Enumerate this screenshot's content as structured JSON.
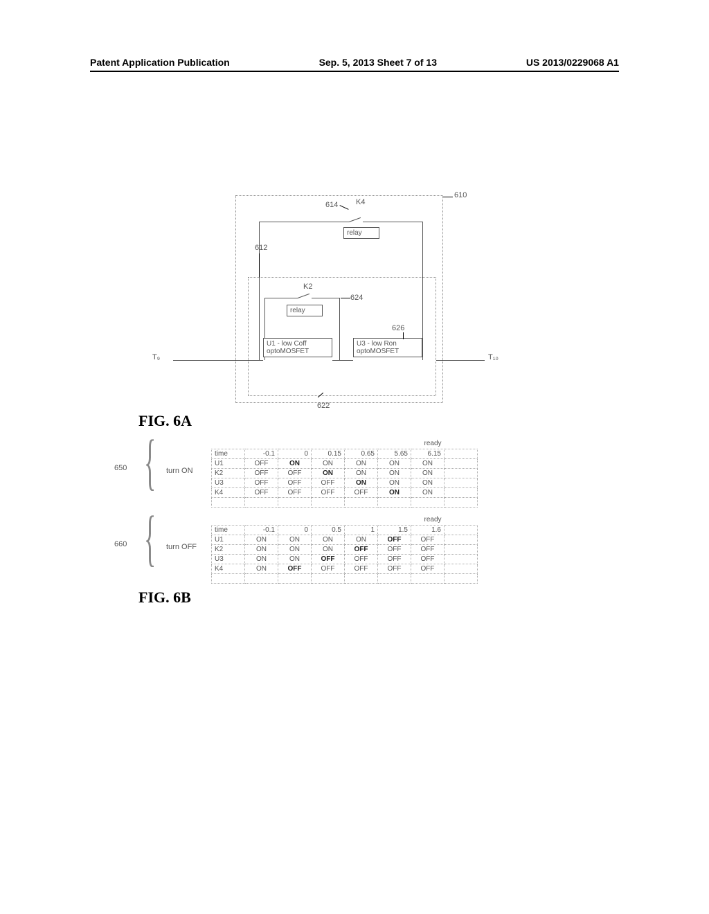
{
  "header": {
    "left": "Patent Application Publication",
    "center": "Sep. 5, 2013   Sheet 7 of 13",
    "right": "US 2013/0229068 A1"
  },
  "circuit": {
    "outer_ref": "610",
    "inner_ref": "612",
    "k4_ref": "614",
    "k2_inner_ref": "624",
    "u1_ref": "622",
    "u3_ref": "626",
    "t9": "T₉",
    "t10": "T₁₀",
    "k4_label": "K4",
    "k2_label": "K2",
    "relay_text": "relay",
    "u1_text1": "U1 - low Coff",
    "u3_text1": "U3 - low Ron",
    "opto_text": "optoMOSFET"
  },
  "fig6a": "FIG. 6A",
  "fig6b": "FIG. 6B",
  "table_on": {
    "ref": "650",
    "mode": "turn ON",
    "ready": "ready",
    "headers": [
      "time",
      "-0.1",
      "0",
      "0.15",
      "0.65",
      "5.65",
      "6.15"
    ],
    "rows": [
      {
        "label": "U1",
        "cells": [
          {
            "v": "OFF"
          },
          {
            "v": "ON",
            "b": true
          },
          {
            "v": "ON"
          },
          {
            "v": "ON"
          },
          {
            "v": "ON"
          },
          {
            "v": "ON"
          }
        ]
      },
      {
        "label": "K2",
        "cells": [
          {
            "v": "OFF"
          },
          {
            "v": "OFF"
          },
          {
            "v": "ON",
            "b": true
          },
          {
            "v": "ON"
          },
          {
            "v": "ON"
          },
          {
            "v": "ON"
          }
        ]
      },
      {
        "label": "U3",
        "cells": [
          {
            "v": "OFF"
          },
          {
            "v": "OFF"
          },
          {
            "v": "OFF"
          },
          {
            "v": "ON",
            "b": true
          },
          {
            "v": "ON"
          },
          {
            "v": "ON"
          }
        ]
      },
      {
        "label": "K4",
        "cells": [
          {
            "v": "OFF"
          },
          {
            "v": "OFF"
          },
          {
            "v": "OFF"
          },
          {
            "v": "OFF"
          },
          {
            "v": "ON",
            "b": true
          },
          {
            "v": "ON"
          }
        ]
      }
    ]
  },
  "table_off": {
    "ref": "660",
    "mode": "turn OFF",
    "ready": "ready",
    "headers": [
      "time",
      "-0.1",
      "0",
      "0.5",
      "1",
      "1.5",
      "1.6"
    ],
    "rows": [
      {
        "label": "U1",
        "cells": [
          {
            "v": "ON"
          },
          {
            "v": "ON"
          },
          {
            "v": "ON"
          },
          {
            "v": "ON"
          },
          {
            "v": "OFF",
            "b": true
          },
          {
            "v": "OFF"
          }
        ]
      },
      {
        "label": "K2",
        "cells": [
          {
            "v": "ON"
          },
          {
            "v": "ON"
          },
          {
            "v": "ON"
          },
          {
            "v": "OFF",
            "b": true
          },
          {
            "v": "OFF"
          },
          {
            "v": "OFF"
          }
        ]
      },
      {
        "label": "U3",
        "cells": [
          {
            "v": "ON"
          },
          {
            "v": "ON"
          },
          {
            "v": "OFF",
            "b": true
          },
          {
            "v": "OFF"
          },
          {
            "v": "OFF"
          },
          {
            "v": "OFF"
          }
        ]
      },
      {
        "label": "K4",
        "cells": [
          {
            "v": "ON"
          },
          {
            "v": "OFF",
            "b": true
          },
          {
            "v": "OFF"
          },
          {
            "v": "OFF"
          },
          {
            "v": "OFF"
          },
          {
            "v": "OFF"
          }
        ]
      }
    ]
  }
}
